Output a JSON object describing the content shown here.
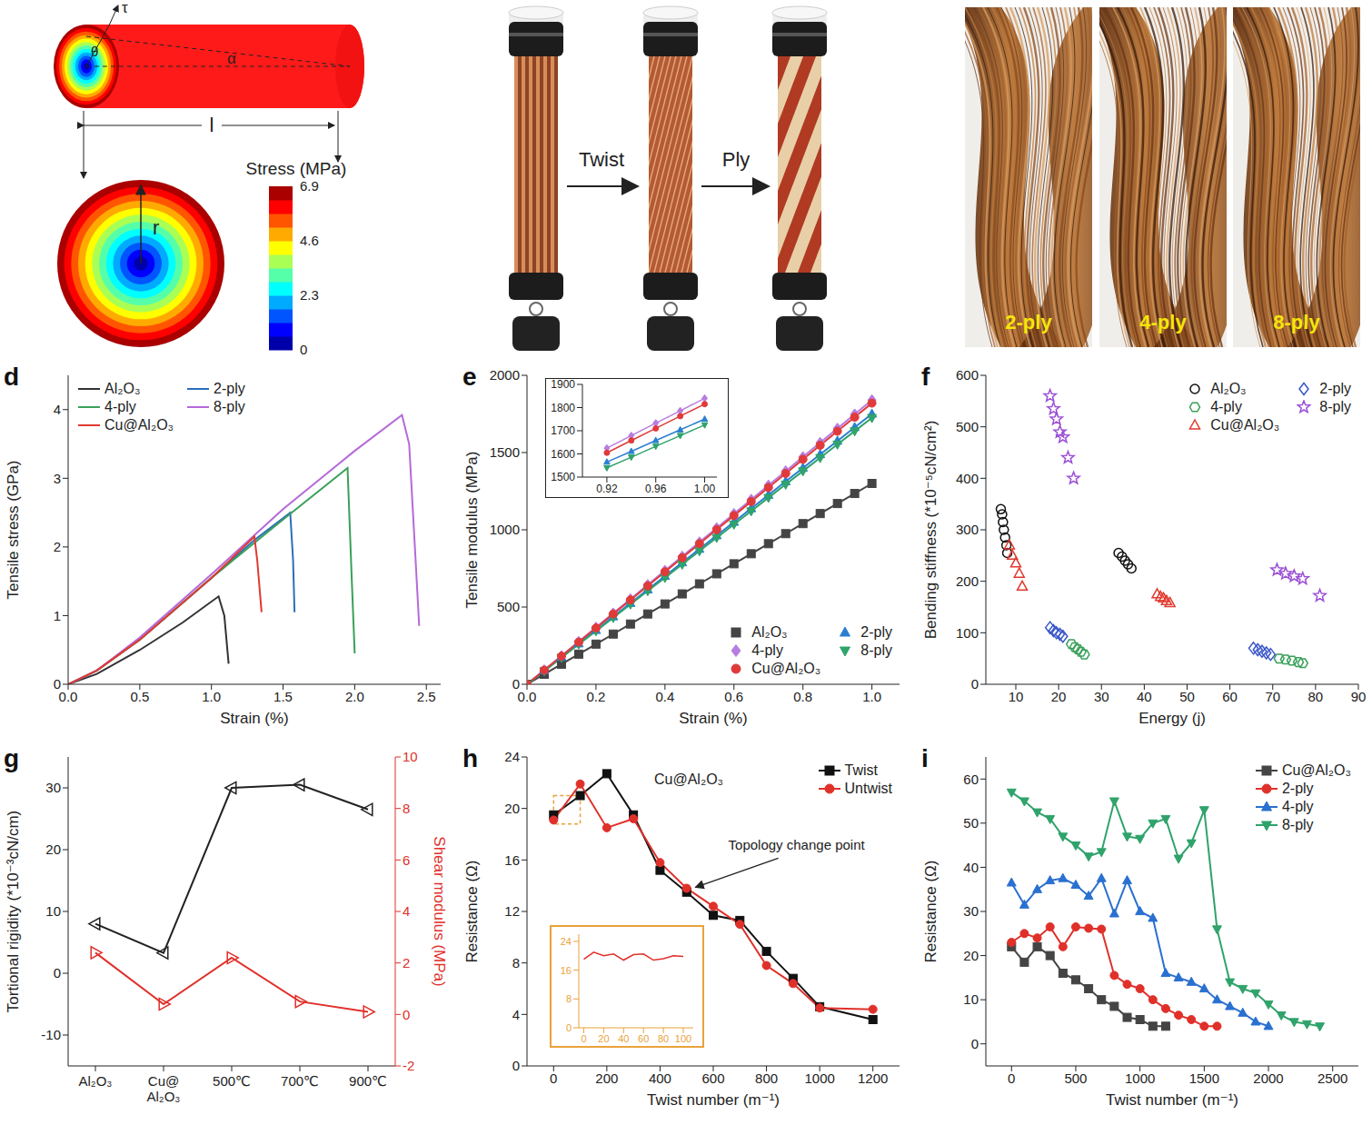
{
  "panel_a": {
    "symbols": {
      "tau": "τ",
      "theta": "θ",
      "alpha": "α",
      "length": "l",
      "radius": "r"
    },
    "colorbar": {
      "title": "Stress (MPa)",
      "range": [
        0,
        6.9
      ],
      "ticks": [
        0,
        2.3,
        4.6,
        6.9
      ]
    }
  },
  "panel_b": {
    "steps": [
      "Twist",
      "Ply"
    ]
  },
  "panel_c": {
    "labels": [
      "2-ply",
      "4-ply",
      "8-ply"
    ]
  },
  "chart_data": [
    {
      "type": "line",
      "panel": "d",
      "x_label": "Strain (%)",
      "y_label": "Tensile stress (GPa)",
      "xlim": [
        0,
        2.6
      ],
      "xticks": [
        {
          "value": 0,
          "label": "0.0"
        },
        0.5,
        {
          "value": 1,
          "label": "1.0"
        },
        1.5,
        {
          "value": 2,
          "label": "2.0"
        },
        2.5
      ],
      "ylim": [
        0,
        4.5
      ],
      "yticks": [
        0,
        1,
        2,
        3,
        4
      ],
      "legend": "top-left",
      "series": [
        {
          "name": "Al₂O₃",
          "color": "#333333",
          "x": [
            0,
            0.2,
            0.5,
            0.8,
            1.05,
            1.09,
            1.12
          ],
          "values": [
            0,
            0.15,
            0.5,
            0.9,
            1.28,
            1.0,
            0.3
          ]
        },
        {
          "name": "2-ply",
          "color": "#2a70b8",
          "x": [
            0,
            0.2,
            0.5,
            1.0,
            1.3,
            1.55,
            1.57,
            1.58
          ],
          "values": [
            0,
            0.2,
            0.65,
            1.55,
            2.1,
            2.5,
            1.8,
            1.05
          ]
        },
        {
          "name": "4-ply",
          "color": "#3aa05a",
          "x": [
            0,
            0.2,
            0.5,
            1.0,
            1.5,
            1.95,
            1.98,
            2.0
          ],
          "values": [
            0,
            0.2,
            0.65,
            1.55,
            2.4,
            3.15,
            1.5,
            0.45
          ]
        },
        {
          "name": "8-ply",
          "color": "#b56ad8",
          "x": [
            0,
            0.2,
            0.5,
            1.0,
            1.5,
            2.0,
            2.33,
            2.38,
            2.42,
            2.45
          ],
          "values": [
            0,
            0.2,
            0.68,
            1.6,
            2.55,
            3.4,
            3.92,
            3.5,
            2.0,
            0.85
          ]
        },
        {
          "name": "Cu@Al₂O₃",
          "color": "#e03a2f",
          "x": [
            0,
            0.2,
            0.5,
            1.0,
            1.3,
            1.32,
            1.35
          ],
          "values": [
            0,
            0.2,
            0.65,
            1.55,
            2.15,
            1.8,
            1.05
          ]
        }
      ]
    },
    {
      "type": "line",
      "panel": "e",
      "x_label": "Strain (%)",
      "y_label": "Tensile modulus (MPa)",
      "xlim": [
        0,
        1.08
      ],
      "xticks": [
        {
          "value": 0,
          "label": "0.0"
        },
        0.2,
        0.4,
        0.6,
        0.8,
        {
          "value": 1,
          "label": "1.0"
        }
      ],
      "ylim": [
        0,
        2000
      ],
      "yticks": [
        0,
        500,
        1000,
        1500,
        2000
      ],
      "legend": "bottom-right",
      "x": [
        0,
        0.05,
        0.1,
        0.15,
        0.2,
        0.25,
        0.3,
        0.35,
        0.4,
        0.45,
        0.5,
        0.55,
        0.6,
        0.65,
        0.7,
        0.75,
        0.8,
        0.85,
        0.9,
        0.95,
        1.0
      ],
      "series": [
        {
          "name": "Al₂O₃",
          "color": "#444444",
          "marker": "square",
          "values": [
            0,
            65,
            130,
            195,
            260,
            325,
            390,
            455,
            520,
            585,
            650,
            715,
            780,
            845,
            910,
            975,
            1040,
            1105,
            1170,
            1235,
            1300
          ]
        },
        {
          "name": "2-ply",
          "color": "#2a7fd0",
          "marker": "triangle",
          "values": [
            0,
            88,
            175,
            263,
            350,
            438,
            525,
            613,
            700,
            788,
            875,
            963,
            1050,
            1138,
            1225,
            1313,
            1400,
            1488,
            1575,
            1663,
            1750
          ]
        },
        {
          "name": "4-ply",
          "color": "#b77de0",
          "marker": "diamond",
          "values": [
            0,
            92,
            184,
            276,
            368,
            460,
            552,
            644,
            736,
            828,
            920,
            1012,
            1104,
            1196,
            1288,
            1380,
            1472,
            1564,
            1656,
            1748,
            1840
          ]
        },
        {
          "name": "8-ply",
          "color": "#2fa36b",
          "marker": "triangle-down",
          "values": [
            0,
            86,
            173,
            259,
            345,
            431,
            518,
            604,
            690,
            776,
            863,
            949,
            1035,
            1121,
            1208,
            1294,
            1380,
            1466,
            1553,
            1639,
            1725
          ]
        },
        {
          "name": "Cu@Al₂O₃",
          "color": "#e03a3a",
          "marker": "circle",
          "values": [
            0,
            91,
            182,
            273,
            364,
            455,
            546,
            637,
            728,
            819,
            910,
            1001,
            1092,
            1183,
            1274,
            1365,
            1456,
            1547,
            1638,
            1729,
            1820
          ]
        }
      ],
      "inset": {
        "xlim": [
          0.9,
          1.01
        ],
        "xticks": [
          0.92,
          0.96,
          {
            "value": 1,
            "label": "1.00"
          }
        ],
        "ylim": [
          1500,
          1900
        ],
        "yticks": [
          1500,
          1600,
          1700,
          1800,
          1900
        ],
        "x": [
          0.92,
          0.94,
          0.96,
          0.98,
          1.0
        ],
        "series": [
          {
            "color": "#b77de0",
            "marker": "diamond",
            "values": [
              1625,
              1679,
              1733,
              1786,
              1840
            ]
          },
          {
            "color": "#e03a3a",
            "marker": "circle",
            "values": [
              1605,
              1658,
              1710,
              1763,
              1815
            ]
          },
          {
            "color": "#2a7fd0",
            "marker": "triangle",
            "values": [
              1565,
              1611,
              1658,
              1704,
              1750
            ]
          },
          {
            "color": "#2fa36b",
            "marker": "triangle-down",
            "values": [
              1540,
              1586,
              1633,
              1679,
              1725
            ]
          }
        ]
      }
    },
    {
      "type": "scatter",
      "panel": "f",
      "x_label": "Energy (j)",
      "y_label": "Bending stiffness (*10⁻⁵cN/cm²)",
      "xlim": [
        3,
        90
      ],
      "xticks": [
        10,
        20,
        30,
        40,
        50,
        60,
        70,
        80,
        90
      ],
      "ylim": [
        0,
        600
      ],
      "yticks": [
        0,
        100,
        200,
        300,
        400,
        500,
        600
      ],
      "legend": "top-right",
      "series": [
        {
          "name": "Al₂O₃",
          "color": "#111111",
          "marker": "open-circle",
          "x": [
            6.5,
            6.8,
            7,
            7.2,
            7.5,
            7.8,
            8,
            34,
            34.8,
            35.5,
            36.2,
            37
          ],
          "values": [
            340,
            330,
            315,
            300,
            285,
            270,
            255,
            255,
            248,
            240,
            233,
            225
          ]
        },
        {
          "name": "2-ply",
          "color": "#3a56c8",
          "marker": "open-diamond",
          "x": [
            18,
            18.8,
            19.5,
            20.3,
            21,
            65.5,
            66.5,
            67.5,
            68.5,
            69.5
          ],
          "values": [
            110,
            104,
            100,
            97,
            93,
            70,
            67,
            64,
            61,
            58
          ]
        },
        {
          "name": "4-ply",
          "color": "#3aa05a",
          "marker": "open-hexagon",
          "x": [
            23,
            23.8,
            24.5,
            25.2,
            26,
            71.5,
            73,
            74.5,
            76,
            77
          ],
          "values": [
            78,
            72,
            68,
            63,
            58,
            50,
            48,
            46,
            43,
            41
          ]
        },
        {
          "name": "8-ply",
          "color": "#9b4fd6",
          "marker": "open-star",
          "x": [
            18,
            18.8,
            19.5,
            20.3,
            21,
            22.2,
            23.5,
            71,
            73,
            75,
            77,
            81
          ],
          "values": [
            560,
            535,
            515,
            490,
            480,
            440,
            400,
            222,
            215,
            210,
            205,
            172
          ]
        },
        {
          "name": "Cu@Al₂O₃",
          "color": "#e03a2f",
          "marker": "open-triangle",
          "x": [
            8.5,
            9.2,
            10,
            10.8,
            11.5,
            43,
            43.8,
            44.5,
            45.2,
            46
          ],
          "values": [
            270,
            250,
            235,
            215,
            190,
            175,
            170,
            167,
            162,
            158
          ]
        }
      ]
    },
    {
      "type": "line",
      "panel": "g",
      "categories": [
        "Al₂O₃",
        "Cu@Al₂O₃",
        "500℃",
        "700℃",
        "900℃"
      ],
      "y_label": "Tortional rigidity (*10⁻³cN/cm)",
      "y2_label": "Shear modulus (MPa)",
      "ylim": [
        -15,
        35
      ],
      "yticks": [
        -10,
        0,
        10,
        20,
        30
      ],
      "y2lim": [
        -2,
        10
      ],
      "y2ticks": [
        -2,
        0,
        2,
        4,
        6,
        8,
        10
      ],
      "series": [
        {
          "color": "#222222",
          "marker": "open-triangle-left",
          "values": [
            8,
            3.3,
            30,
            30.5,
            26.5
          ]
        },
        {
          "color": "#e0302a",
          "marker": "open-triangle-right",
          "axis": "y2",
          "values": [
            2.4,
            0.4,
            2.2,
            0.5,
            0.1
          ]
        }
      ]
    },
    {
      "type": "line",
      "panel": "h",
      "title": "Cu@Al₂O₃",
      "x_label": "Twist number (m⁻¹)",
      "y_label": "Resistance (Ω)",
      "xlim": [
        -100,
        1300
      ],
      "xticks": [
        0,
        200,
        400,
        600,
        800,
        1000,
        1200
      ],
      "ylim": [
        0,
        24
      ],
      "yticks": [
        0,
        4,
        8,
        12,
        16,
        20,
        24
      ],
      "legend": "top-right",
      "annotations": [
        {
          "text": "Topology change point",
          "x": 520,
          "y": 13.6
        }
      ],
      "series": [
        {
          "name": "Twist",
          "color": "#111111",
          "marker": "square",
          "x": [
            0,
            100,
            200,
            300,
            400,
            500,
            600,
            700,
            800,
            900,
            1000,
            1200
          ],
          "values": [
            19.5,
            21,
            22.7,
            19.5,
            15.2,
            13.5,
            11.7,
            11.3,
            8.9,
            6.8,
            4.6,
            3.6
          ]
        },
        {
          "name": "Untwist",
          "color": "#e0302a",
          "marker": "circle",
          "x": [
            0,
            100,
            200,
            300,
            400,
            500,
            600,
            700,
            800,
            900,
            1000,
            1200
          ],
          "values": [
            19.1,
            21.9,
            18.5,
            19.2,
            15.8,
            13.8,
            12.4,
            11,
            7.8,
            6.4,
            4.5,
            4.4
          ]
        }
      ],
      "inset": {
        "xlim": [
          -5,
          110
        ],
        "xticks": [
          0,
          20,
          40,
          60,
          80,
          100
        ],
        "ylim": [
          0,
          26
        ],
        "yticks": [
          0,
          8,
          16,
          24
        ],
        "series": [
          {
            "color": "#e0302a",
            "x": [
              0,
              10,
              20,
              30,
              40,
              50,
              60,
              70,
              80,
              90,
              100
            ],
            "values": [
              19,
              21,
              20,
              20.5,
              18.8,
              20.3,
              20.5,
              18.8,
              19.2,
              20,
              19.8
            ]
          }
        ]
      }
    },
    {
      "type": "line",
      "panel": "i",
      "x_label": "Twist number (m⁻¹)",
      "y_label": "Resistance (Ω)",
      "xlim": [
        -200,
        2700
      ],
      "xticks": [
        0,
        500,
        1000,
        1500,
        2000,
        2500
      ],
      "ylim": [
        -5,
        65
      ],
      "yticks": [
        0,
        10,
        20,
        30,
        40,
        50,
        60
      ],
      "legend": "top-right",
      "series": [
        {
          "name": "Cu@Al₂O₃",
          "color": "#444444",
          "marker": "square",
          "x": [
            0,
            100,
            200,
            300,
            400,
            500,
            600,
            700,
            800,
            900,
            1000,
            1100,
            1200
          ],
          "values": [
            22,
            18.5,
            22,
            20,
            16,
            14.5,
            12.5,
            10,
            8.5,
            6,
            5.5,
            4,
            4
          ]
        },
        {
          "name": "2-ply",
          "color": "#e0302a",
          "marker": "circle",
          "x": [
            0,
            100,
            200,
            300,
            400,
            500,
            600,
            700,
            800,
            900,
            1000,
            1100,
            1200,
            1300,
            1400,
            1500,
            1600
          ],
          "values": [
            23,
            25,
            24,
            26.5,
            22,
            26.5,
            26.2,
            26,
            15.5,
            13.5,
            12.5,
            10,
            8,
            6.5,
            5.5,
            4,
            4
          ]
        },
        {
          "name": "4-ply",
          "color": "#2a70d0",
          "marker": "triangle",
          "x": [
            0,
            100,
            200,
            300,
            400,
            500,
            600,
            700,
            800,
            900,
            1000,
            1100,
            1200,
            1300,
            1400,
            1500,
            1600,
            1700,
            1800,
            1900,
            2000
          ],
          "values": [
            36.5,
            31.5,
            35,
            37,
            37.5,
            36,
            33.5,
            37.5,
            29.5,
            37,
            30,
            28.5,
            16,
            15,
            14,
            12.5,
            10,
            8.5,
            7,
            5,
            4
          ]
        },
        {
          "name": "8-ply",
          "color": "#2fa36b",
          "marker": "triangle-down",
          "x": [
            0,
            100,
            200,
            300,
            400,
            500,
            600,
            700,
            800,
            900,
            1000,
            1100,
            1200,
            1300,
            1400,
            1500,
            1600,
            1700,
            1800,
            1900,
            2000,
            2100,
            2200,
            2300,
            2400
          ],
          "values": [
            57,
            55,
            52.5,
            51,
            47,
            45,
            42.5,
            43.5,
            55,
            47,
            46.5,
            50,
            51,
            42,
            45.5,
            53,
            26,
            14,
            12.5,
            11.5,
            9,
            6.5,
            5,
            4.5,
            4
          ]
        }
      ]
    }
  ]
}
